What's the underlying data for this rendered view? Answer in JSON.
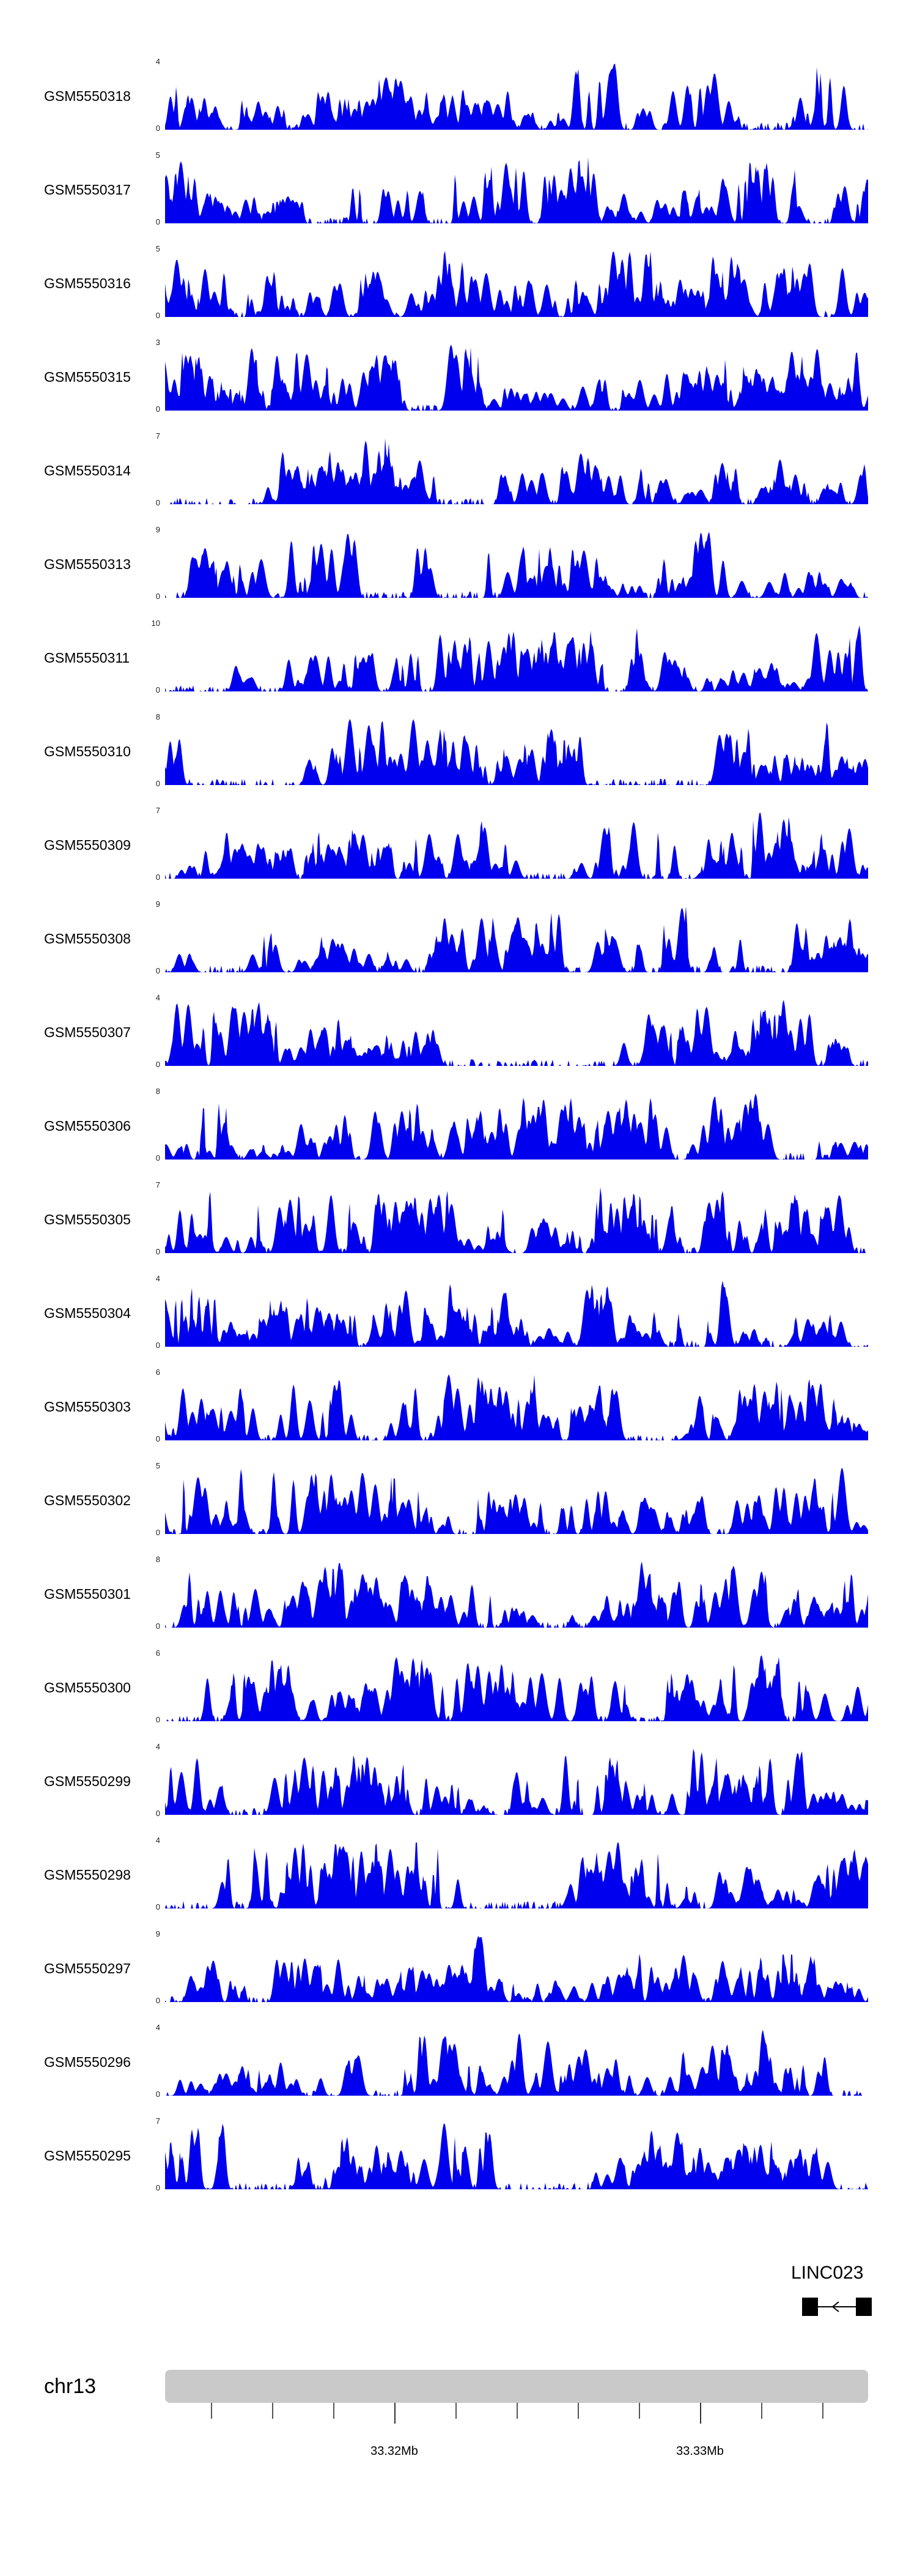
{
  "chart_data": {
    "type": "area",
    "title": "",
    "legend": "none",
    "grid": false,
    "signal_color": "#0000ee",
    "y_axis": {
      "ymin": 0,
      "ymin_label": "0",
      "note": "each track shows 0 at baseline and its own max at top"
    },
    "x_axis": {
      "chromosome": "chr13",
      "unit": "Mb",
      "start": 33.3125,
      "end": 33.3355,
      "minor_tick_step": 0.002,
      "minor_ticks": [
        33.314,
        33.316,
        33.318,
        33.32,
        33.322,
        33.324,
        33.326,
        33.328,
        33.33,
        33.332,
        33.334
      ],
      "labeled_ticks": [
        {
          "value": 33.32,
          "label": "33.32Mb"
        },
        {
          "value": 33.33,
          "label": "33.33Mb"
        }
      ]
    },
    "tracks": [
      {
        "name": "GSM5550318",
        "ymin": 0,
        "ymax": 4,
        "seed": 5550318
      },
      {
        "name": "GSM5550317",
        "ymin": 0,
        "ymax": 5,
        "seed": 5550317
      },
      {
        "name": "GSM5550316",
        "ymin": 0,
        "ymax": 5,
        "seed": 5550316
      },
      {
        "name": "GSM5550315",
        "ymin": 0,
        "ymax": 3,
        "seed": 5550315
      },
      {
        "name": "GSM5550314",
        "ymin": 0,
        "ymax": 7,
        "seed": 5550314
      },
      {
        "name": "GSM5550313",
        "ymin": 0,
        "ymax": 9,
        "seed": 5550313
      },
      {
        "name": "GSM5550311",
        "ymin": 0,
        "ymax": 10,
        "seed": 5550311
      },
      {
        "name": "GSM5550310",
        "ymin": 0,
        "ymax": 8,
        "seed": 5550310
      },
      {
        "name": "GSM5550309",
        "ymin": 0,
        "ymax": 7,
        "seed": 5550309
      },
      {
        "name": "GSM5550308",
        "ymin": 0,
        "ymax": 9,
        "seed": 5550308
      },
      {
        "name": "GSM5550307",
        "ymin": 0,
        "ymax": 4,
        "seed": 5550307
      },
      {
        "name": "GSM5550306",
        "ymin": 0,
        "ymax": 8,
        "seed": 5550306
      },
      {
        "name": "GSM5550305",
        "ymin": 0,
        "ymax": 7,
        "seed": 5550305
      },
      {
        "name": "GSM5550304",
        "ymin": 0,
        "ymax": 4,
        "seed": 5550304
      },
      {
        "name": "GSM5550303",
        "ymin": 0,
        "ymax": 6,
        "seed": 5550303
      },
      {
        "name": "GSM5550302",
        "ymin": 0,
        "ymax": 5,
        "seed": 5550302
      },
      {
        "name": "GSM5550301",
        "ymin": 0,
        "ymax": 8,
        "seed": 5550301
      },
      {
        "name": "GSM5550300",
        "ymin": 0,
        "ymax": 6,
        "seed": 5550300
      },
      {
        "name": "GSM5550299",
        "ymin": 0,
        "ymax": 4,
        "seed": 5550299
      },
      {
        "name": "GSM5550298",
        "ymin": 0,
        "ymax": 4,
        "seed": 5550298
      },
      {
        "name": "GSM5550297",
        "ymin": 0,
        "ymax": 9,
        "seed": 5550297
      },
      {
        "name": "GSM5550296",
        "ymin": 0,
        "ymax": 4,
        "seed": 5550296
      },
      {
        "name": "GSM5550295",
        "ymin": 0,
        "ymax": 7,
        "seed": 5550295
      }
    ]
  },
  "gene_row": {
    "label": "LINC023",
    "color": "#000000",
    "strand": "left"
  },
  "ideogram": {
    "chrom_label": "chr13",
    "bar_color": "#c9c9c9"
  }
}
